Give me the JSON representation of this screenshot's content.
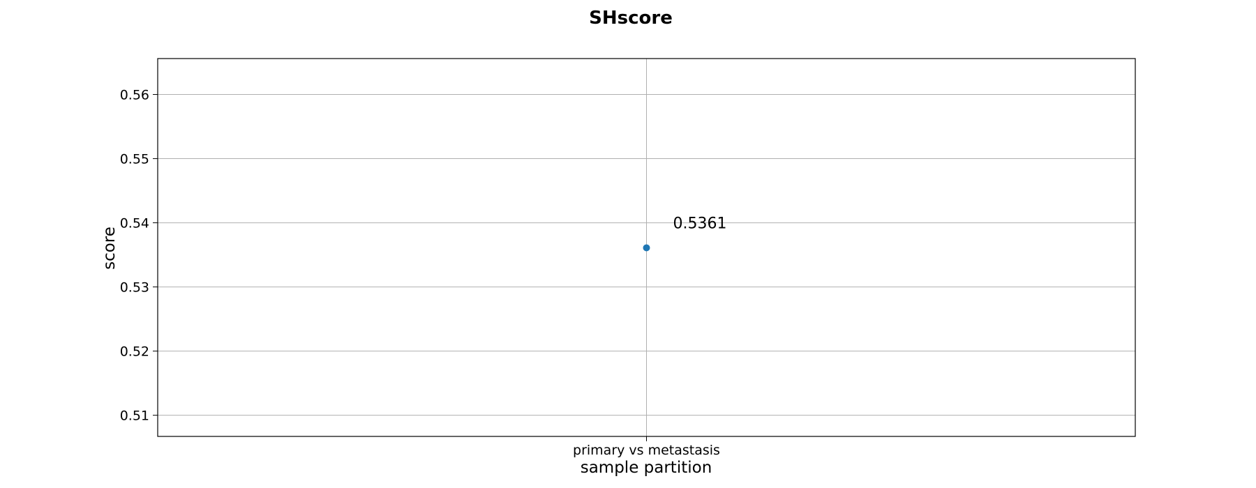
{
  "chart_data": {
    "type": "scatter",
    "title": "SHscore",
    "xlabel": "sample partition",
    "ylabel": "score",
    "categories": [
      "primary vs metastasis"
    ],
    "values": [
      0.5361
    ],
    "data_labels": [
      "0.5361"
    ],
    "ylim": [
      0.5067,
      0.5656
    ],
    "yticks": [
      0.51,
      0.52,
      0.53,
      0.54,
      0.55,
      0.56
    ],
    "ytick_labels": [
      "0.51",
      "0.52",
      "0.53",
      "0.54",
      "0.55",
      "0.56"
    ],
    "grid": true,
    "color": "#1f77b4"
  }
}
